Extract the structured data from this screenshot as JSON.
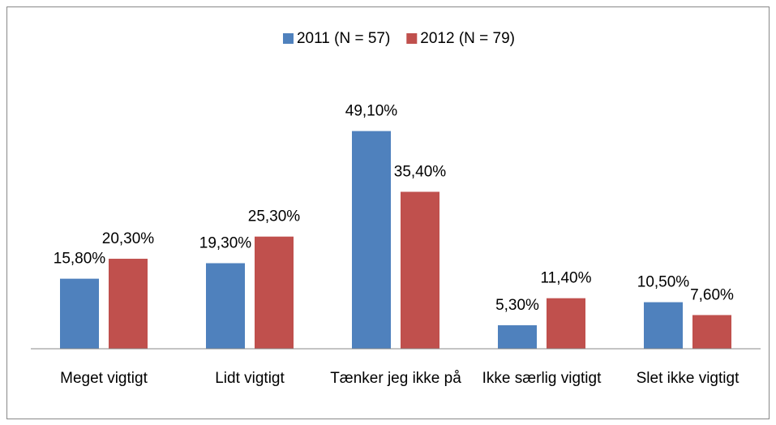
{
  "chart_data": {
    "type": "bar",
    "categories": [
      "Meget vigtigt",
      "Lidt vigtigt",
      "Tænker jeg ikke på",
      "Ikke særlig vigtigt",
      "Slet ikke vigtigt"
    ],
    "series": [
      {
        "name": "2011 (N = 57)",
        "color": "#4f81bd",
        "values": [
          15.8,
          19.3,
          49.1,
          5.3,
          10.5
        ],
        "value_labels": [
          "15,80%",
          "19,30%",
          "49,10%",
          "5,30%",
          "10,50%"
        ]
      },
      {
        "name": "2012 (N = 79)",
        "color": "#c0504d",
        "values": [
          20.3,
          25.3,
          35.4,
          11.4,
          7.6
        ],
        "value_labels": [
          "20,30%",
          "25,30%",
          "35,40%",
          "11,40%",
          "7,60%"
        ]
      }
    ],
    "ylim": [
      0,
      60
    ],
    "legend": "top"
  }
}
